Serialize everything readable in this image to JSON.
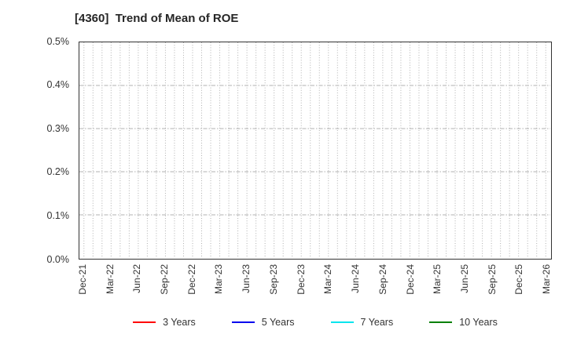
{
  "chart": {
    "title": "[4360]  Trend of Mean of ROE"
  },
  "chart_data": {
    "type": "line",
    "title": "[4360]  Trend of Mean of ROE",
    "xlabel": "",
    "ylabel": "",
    "x_tick_labels": [
      "Dec-21",
      "Mar-22",
      "Jun-22",
      "Sep-22",
      "Dec-22",
      "Mar-23",
      "Jun-23",
      "Sep-23",
      "Dec-23",
      "Mar-24",
      "Jun-24",
      "Sep-24",
      "Dec-24",
      "Mar-25",
      "Jun-25",
      "Sep-25",
      "Dec-25",
      "Mar-26"
    ],
    "x_months_total": 52,
    "x_months_per_labeled_tick": 3,
    "y_tick_labels": [
      "0.0%",
      "0.1%",
      "0.2%",
      "0.3%",
      "0.4%",
      "0.5%"
    ],
    "y_ticks_percent": [
      0.0,
      0.1,
      0.2,
      0.3,
      0.4,
      0.5
    ],
    "ylim_percent": [
      0.0,
      0.5
    ],
    "series": [
      {
        "name": "3 Years",
        "color": "#ff0000",
        "values": []
      },
      {
        "name": "5 Years",
        "color": "#0000ee",
        "values": []
      },
      {
        "name": "7 Years",
        "color": "#00e5ee",
        "values": []
      },
      {
        "name": "10 Years",
        "color": "#008000",
        "values": []
      }
    ],
    "no_series_data_visible": true,
    "legend_position": "bottom-center",
    "grid": {
      "vertical_style": "dotted-monthly",
      "horizontal_style": "dash-dot",
      "color": "#b0b0b0"
    },
    "plot_border_color": "#333333",
    "background_color": "#ffffff",
    "text_color": "#333333"
  }
}
